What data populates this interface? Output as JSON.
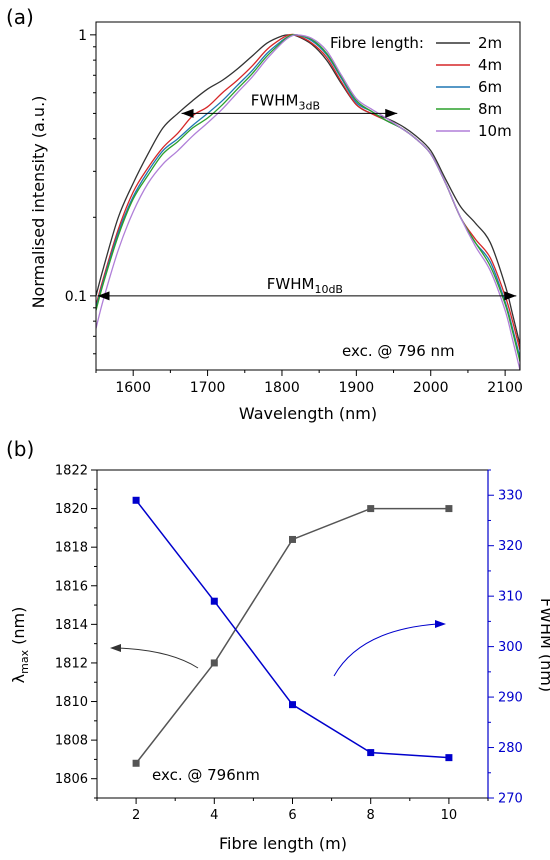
{
  "chart_data": [
    {
      "panel_label": "(a)",
      "type": "line",
      "xlabel": "Wavelength (nm)",
      "ylabel": "Normalised intensity (a.u.)",
      "xlim": [
        1550,
        2120
      ],
      "ylim": [
        0.052,
        1.12
      ],
      "y_scale": "log",
      "x_ticks": [
        1600,
        1700,
        1800,
        1900,
        2000,
        2100
      ],
      "y_ticks": [
        {
          "value": 0.1,
          "label": "0.1"
        },
        {
          "value": 1,
          "label": "1"
        }
      ],
      "legend_title": "Fibre length:",
      "legend_position": "top-right",
      "series": [
        {
          "name": "2m",
          "color": "#333333",
          "x": [
            1550,
            1560,
            1580,
            1600,
            1620,
            1640,
            1660,
            1680,
            1700,
            1720,
            1740,
            1760,
            1780,
            1800,
            1810,
            1820,
            1840,
            1860,
            1880,
            1900,
            1920,
            1940,
            1960,
            1980,
            2000,
            2020,
            2040,
            2060,
            2080,
            2100,
            2110,
            2120
          ],
          "y": [
            0.1,
            0.128,
            0.2,
            0.27,
            0.35,
            0.44,
            0.5,
            0.56,
            0.62,
            0.67,
            0.74,
            0.83,
            0.93,
            0.99,
            1.0,
            0.99,
            0.92,
            0.8,
            0.65,
            0.54,
            0.5,
            0.48,
            0.45,
            0.41,
            0.36,
            0.28,
            0.22,
            0.19,
            0.16,
            0.11,
            0.085,
            0.065
          ]
        },
        {
          "name": "4m",
          "color": "#d62728",
          "x": [
            1550,
            1560,
            1580,
            1600,
            1620,
            1640,
            1660,
            1680,
            1700,
            1720,
            1740,
            1760,
            1780,
            1800,
            1810,
            1820,
            1840,
            1860,
            1880,
            1900,
            1920,
            1940,
            1960,
            1980,
            2000,
            2020,
            2040,
            2060,
            2080,
            2100,
            2110,
            2120
          ],
          "y": [
            0.092,
            0.117,
            0.18,
            0.25,
            0.31,
            0.37,
            0.42,
            0.49,
            0.53,
            0.6,
            0.67,
            0.76,
            0.88,
            0.97,
            1.0,
            0.995,
            0.93,
            0.82,
            0.66,
            0.54,
            0.5,
            0.47,
            0.44,
            0.4,
            0.35,
            0.27,
            0.2,
            0.165,
            0.14,
            0.1,
            0.08,
            0.062
          ]
        },
        {
          "name": "6m",
          "color": "#1f77b4",
          "x": [
            1550,
            1560,
            1580,
            1600,
            1620,
            1640,
            1660,
            1680,
            1700,
            1720,
            1740,
            1760,
            1780,
            1800,
            1810,
            1820,
            1840,
            1860,
            1880,
            1900,
            1920,
            1940,
            1960,
            1980,
            2000,
            2020,
            2040,
            2060,
            2080,
            2100,
            2110,
            2120
          ],
          "y": [
            0.09,
            0.114,
            0.175,
            0.24,
            0.3,
            0.36,
            0.4,
            0.45,
            0.5,
            0.56,
            0.64,
            0.73,
            0.85,
            0.95,
            0.99,
            1.0,
            0.95,
            0.84,
            0.68,
            0.55,
            0.51,
            0.47,
            0.44,
            0.4,
            0.35,
            0.27,
            0.2,
            0.16,
            0.135,
            0.095,
            0.075,
            0.058
          ]
        },
        {
          "name": "8m",
          "color": "#2ca02c",
          "x": [
            1550,
            1560,
            1580,
            1600,
            1620,
            1640,
            1660,
            1680,
            1700,
            1720,
            1740,
            1760,
            1780,
            1800,
            1810,
            1820,
            1840,
            1860,
            1880,
            1900,
            1920,
            1940,
            1960,
            1980,
            2000,
            2020,
            2040,
            2060,
            2080,
            2100,
            2110,
            2120
          ],
          "y": [
            0.088,
            0.112,
            0.17,
            0.235,
            0.29,
            0.35,
            0.39,
            0.44,
            0.48,
            0.54,
            0.62,
            0.71,
            0.83,
            0.94,
            0.99,
            1.0,
            0.96,
            0.85,
            0.69,
            0.56,
            0.51,
            0.47,
            0.44,
            0.4,
            0.35,
            0.27,
            0.2,
            0.16,
            0.13,
            0.093,
            0.073,
            0.056
          ]
        },
        {
          "name": "10m",
          "color": "#b07fd8",
          "x": [
            1550,
            1560,
            1580,
            1600,
            1620,
            1640,
            1660,
            1680,
            1700,
            1720,
            1740,
            1760,
            1780,
            1800,
            1810,
            1820,
            1840,
            1860,
            1880,
            1900,
            1920,
            1940,
            1960,
            1980,
            2000,
            2020,
            2040,
            2060,
            2080,
            2100,
            2110,
            2120
          ],
          "y": [
            0.075,
            0.097,
            0.15,
            0.21,
            0.27,
            0.32,
            0.36,
            0.41,
            0.46,
            0.52,
            0.6,
            0.69,
            0.81,
            0.93,
            0.98,
            1.0,
            0.97,
            0.87,
            0.7,
            0.57,
            0.52,
            0.48,
            0.44,
            0.4,
            0.35,
            0.27,
            0.2,
            0.155,
            0.125,
            0.088,
            0.068,
            0.052
          ]
        }
      ],
      "annotations": {
        "fwhm_3db": {
          "label": "FWHM",
          "label_sub": "3dB",
          "x_from": 1665,
          "x_to": 1955,
          "y": 0.5
        },
        "fwhm_10db": {
          "label": "FWHM",
          "label_sub": "10dB",
          "x_from": 1552,
          "x_to": 2115,
          "y": 0.1
        },
        "excitation": "exc. @ 796 nm"
      }
    },
    {
      "panel_label": "(b)",
      "type": "line",
      "xlabel": "Fibre length (m)",
      "ylabel_left": "λ",
      "ylabel_left_sub": "max",
      "ylabel_left_unit": " (nm)",
      "ylabel_right": "FWHM (nm)",
      "xlim": [
        1,
        11
      ],
      "ylim_left": [
        1805,
        1822
      ],
      "ylim_right": [
        270,
        335
      ],
      "x_ticks": [
        2,
        4,
        6,
        8,
        10
      ],
      "y_ticks_left": [
        1806,
        1808,
        1810,
        1812,
        1814,
        1816,
        1818,
        1820,
        1822
      ],
      "y_ticks_right": [
        270,
        280,
        290,
        300,
        310,
        320,
        330
      ],
      "series": [
        {
          "axis": "left",
          "color": "#555555",
          "x": [
            2,
            4,
            6,
            8,
            10
          ],
          "y": [
            1806.8,
            1812,
            1818.4,
            1820,
            1820
          ]
        },
        {
          "axis": "right",
          "color": "#0000cc",
          "x": [
            2,
            4,
            6,
            8,
            10
          ],
          "y": [
            329,
            309,
            288.5,
            279,
            278
          ]
        }
      ],
      "annotations": {
        "excitation": "exc. @ 796nm"
      }
    }
  ]
}
